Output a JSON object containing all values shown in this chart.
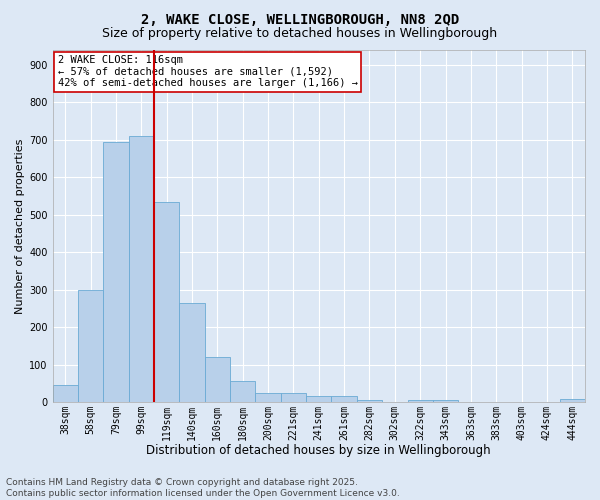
{
  "title1": "2, WAKE CLOSE, WELLINGBOROUGH, NN8 2QD",
  "title2": "Size of property relative to detached houses in Wellingborough",
  "xlabel": "Distribution of detached houses by size in Wellingborough",
  "ylabel": "Number of detached properties",
  "categories": [
    "38sqm",
    "58sqm",
    "79sqm",
    "99sqm",
    "119sqm",
    "140sqm",
    "160sqm",
    "180sqm",
    "200sqm",
    "221sqm",
    "241sqm",
    "261sqm",
    "282sqm",
    "302sqm",
    "322sqm",
    "343sqm",
    "363sqm",
    "383sqm",
    "403sqm",
    "424sqm",
    "444sqm"
  ],
  "values": [
    45,
    300,
    695,
    710,
    535,
    265,
    120,
    58,
    25,
    25,
    17,
    18,
    7,
    0,
    7,
    7,
    2,
    0,
    0,
    0,
    8
  ],
  "bar_color": "#b8d0ea",
  "bar_edge_color": "#6aaad4",
  "vline_color": "#cc0000",
  "annotation_text": "2 WAKE CLOSE: 116sqm\n← 57% of detached houses are smaller (1,592)\n42% of semi-detached houses are larger (1,166) →",
  "annotation_box_color": "#ffffff",
  "annotation_box_edge_color": "#cc0000",
  "ylim": [
    0,
    940
  ],
  "yticks": [
    0,
    100,
    200,
    300,
    400,
    500,
    600,
    700,
    800,
    900
  ],
  "footer": "Contains HM Land Registry data © Crown copyright and database right 2025.\nContains public sector information licensed under the Open Government Licence v3.0.",
  "background_color": "#dde8f5",
  "plot_background_color": "#dde8f5",
  "grid_color": "#ffffff",
  "title1_fontsize": 10,
  "title2_fontsize": 9,
  "xlabel_fontsize": 8.5,
  "ylabel_fontsize": 8,
  "tick_fontsize": 7,
  "annotation_fontsize": 7.5,
  "footer_fontsize": 6.5
}
